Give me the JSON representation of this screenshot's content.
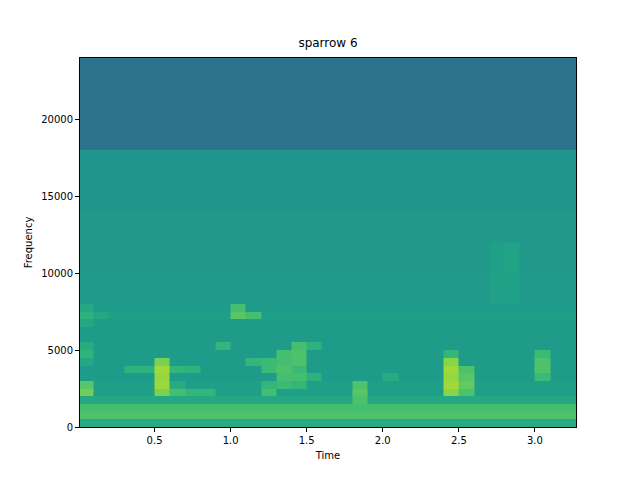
{
  "chart_data": {
    "type": "heatmap",
    "title": "sparrow 6",
    "x_label": "Time",
    "y_label": "Frequency",
    "xlim": [
      0.01,
      3.27
    ],
    "xticks": [
      {
        "value": 0.5,
        "label": "0.5"
      },
      {
        "value": 1,
        "label": "1.0"
      },
      {
        "value": 1.5,
        "label": "1.5"
      },
      {
        "value": 2,
        "label": "2.0"
      },
      {
        "value": 2.5,
        "label": "2.5"
      },
      {
        "value": 3,
        "label": "3.0"
      }
    ],
    "ylim": [
      0,
      24000
    ],
    "yticks": [
      0,
      5000,
      10000,
      15000,
      20000
    ],
    "color": "Viridis",
    "color_range": [
      0,
      1
    ],
    "x": [
      0,
      0.1,
      0.2,
      0.3,
      0.4,
      0.5,
      0.6,
      0.7,
      0.8,
      0.9,
      1.0,
      1.1,
      1.2,
      1.3,
      1.4,
      1.5,
      1.6,
      1.7,
      1.8,
      1.9,
      2.0,
      2.1,
      2.2,
      2.3,
      2.4,
      2.5,
      2.6,
      2.7,
      2.8,
      2.9,
      3.0,
      3.1,
      3.2,
      3.3
    ],
    "y": [
      0,
      500,
      1000,
      1500,
      2000,
      2500,
      3000,
      3500,
      4000,
      4500,
      5000,
      5500,
      6000,
      6500,
      7000,
      7500,
      8000,
      10000,
      12000,
      14000,
      16000,
      18000,
      20000,
      22000,
      24000
    ],
    "z": [
      [
        0.62,
        0.62,
        0.62,
        0.62,
        0.62,
        0.62,
        0.62,
        0.62,
        0.62,
        0.62,
        0.62,
        0.62,
        0.62,
        0.62,
        0.62,
        0.62,
        0.62,
        0.62,
        0.62,
        0.62,
        0.62,
        0.62,
        0.62,
        0.62,
        0.62,
        0.62,
        0.62,
        0.62,
        0.62,
        0.62,
        0.62,
        0.62,
        0.62
      ],
      [
        0.72,
        0.72,
        0.72,
        0.72,
        0.72,
        0.72,
        0.72,
        0.72,
        0.72,
        0.72,
        0.72,
        0.72,
        0.72,
        0.72,
        0.72,
        0.72,
        0.72,
        0.72,
        0.72,
        0.72,
        0.72,
        0.72,
        0.72,
        0.72,
        0.72,
        0.72,
        0.72,
        0.72,
        0.72,
        0.72,
        0.72,
        0.72,
        0.72
      ],
      [
        0.7,
        0.7,
        0.7,
        0.7,
        0.7,
        0.7,
        0.7,
        0.7,
        0.7,
        0.7,
        0.7,
        0.7,
        0.7,
        0.7,
        0.7,
        0.7,
        0.7,
        0.7,
        0.7,
        0.7,
        0.7,
        0.7,
        0.7,
        0.7,
        0.7,
        0.7,
        0.7,
        0.7,
        0.7,
        0.7,
        0.7,
        0.7,
        0.7
      ],
      [
        0.6,
        0.6,
        0.6,
        0.6,
        0.6,
        0.6,
        0.6,
        0.6,
        0.6,
        0.6,
        0.6,
        0.6,
        0.6,
        0.6,
        0.6,
        0.6,
        0.6,
        0.6,
        0.72,
        0.6,
        0.6,
        0.6,
        0.6,
        0.6,
        0.6,
        0.6,
        0.6,
        0.6,
        0.6,
        0.6,
        0.6,
        0.6,
        0.6
      ],
      [
        0.78,
        0.56,
        0.56,
        0.56,
        0.56,
        0.8,
        0.7,
        0.66,
        0.66,
        0.56,
        0.56,
        0.56,
        0.7,
        0.56,
        0.56,
        0.56,
        0.56,
        0.56,
        0.74,
        0.56,
        0.56,
        0.56,
        0.56,
        0.56,
        0.82,
        0.72,
        0.56,
        0.56,
        0.56,
        0.56,
        0.56,
        0.56,
        0.56
      ],
      [
        0.74,
        0.56,
        0.56,
        0.56,
        0.56,
        0.85,
        0.62,
        0.56,
        0.56,
        0.56,
        0.56,
        0.56,
        0.66,
        0.68,
        0.66,
        0.56,
        0.56,
        0.56,
        0.72,
        0.56,
        0.56,
        0.56,
        0.56,
        0.56,
        0.86,
        0.76,
        0.56,
        0.56,
        0.56,
        0.56,
        0.56,
        0.56,
        0.56
      ],
      [
        0.55,
        0.55,
        0.55,
        0.55,
        0.55,
        0.84,
        0.55,
        0.55,
        0.55,
        0.55,
        0.55,
        0.55,
        0.55,
        0.7,
        0.7,
        0.64,
        0.55,
        0.55,
        0.55,
        0.55,
        0.62,
        0.55,
        0.55,
        0.55,
        0.84,
        0.74,
        0.55,
        0.55,
        0.55,
        0.55,
        0.68,
        0.55,
        0.55
      ],
      [
        0.55,
        0.55,
        0.55,
        0.64,
        0.64,
        0.86,
        0.66,
        0.64,
        0.55,
        0.55,
        0.55,
        0.55,
        0.68,
        0.72,
        0.68,
        0.55,
        0.55,
        0.55,
        0.55,
        0.55,
        0.55,
        0.55,
        0.55,
        0.55,
        0.86,
        0.72,
        0.55,
        0.55,
        0.55,
        0.55,
        0.72,
        0.55,
        0.55
      ],
      [
        0.6,
        0.55,
        0.55,
        0.55,
        0.55,
        0.8,
        0.55,
        0.55,
        0.55,
        0.55,
        0.55,
        0.66,
        0.68,
        0.7,
        0.72,
        0.55,
        0.55,
        0.55,
        0.55,
        0.55,
        0.55,
        0.55,
        0.55,
        0.55,
        0.82,
        0.55,
        0.55,
        0.55,
        0.55,
        0.55,
        0.72,
        0.55,
        0.55
      ],
      [
        0.65,
        0.55,
        0.55,
        0.55,
        0.55,
        0.55,
        0.55,
        0.55,
        0.55,
        0.55,
        0.55,
        0.55,
        0.55,
        0.7,
        0.72,
        0.55,
        0.55,
        0.55,
        0.55,
        0.55,
        0.55,
        0.55,
        0.55,
        0.55,
        0.66,
        0.55,
        0.55,
        0.55,
        0.55,
        0.55,
        0.68,
        0.55,
        0.55
      ],
      [
        0.62,
        0.55,
        0.55,
        0.55,
        0.55,
        0.55,
        0.55,
        0.55,
        0.55,
        0.66,
        0.55,
        0.55,
        0.55,
        0.55,
        0.7,
        0.64,
        0.55,
        0.55,
        0.55,
        0.55,
        0.55,
        0.55,
        0.55,
        0.55,
        0.55,
        0.55,
        0.55,
        0.55,
        0.55,
        0.55,
        0.55,
        0.55,
        0.55
      ],
      [
        0.55,
        0.55,
        0.55,
        0.55,
        0.55,
        0.55,
        0.55,
        0.55,
        0.55,
        0.55,
        0.55,
        0.55,
        0.55,
        0.55,
        0.55,
        0.55,
        0.55,
        0.55,
        0.55,
        0.55,
        0.55,
        0.55,
        0.55,
        0.55,
        0.55,
        0.55,
        0.55,
        0.55,
        0.55,
        0.55,
        0.55,
        0.55,
        0.55
      ],
      [
        0.55,
        0.55,
        0.55,
        0.55,
        0.55,
        0.55,
        0.55,
        0.55,
        0.55,
        0.55,
        0.55,
        0.55,
        0.55,
        0.55,
        0.55,
        0.55,
        0.55,
        0.55,
        0.55,
        0.55,
        0.55,
        0.55,
        0.55,
        0.55,
        0.55,
        0.55,
        0.55,
        0.55,
        0.55,
        0.55,
        0.55,
        0.55,
        0.55
      ],
      [
        0.6,
        0.55,
        0.55,
        0.55,
        0.55,
        0.55,
        0.55,
        0.55,
        0.55,
        0.55,
        0.55,
        0.55,
        0.55,
        0.55,
        0.55,
        0.55,
        0.55,
        0.55,
        0.55,
        0.55,
        0.55,
        0.55,
        0.55,
        0.55,
        0.55,
        0.55,
        0.55,
        0.55,
        0.55,
        0.55,
        0.55,
        0.55,
        0.55
      ],
      [
        0.64,
        0.6,
        0.56,
        0.56,
        0.56,
        0.56,
        0.56,
        0.56,
        0.56,
        0.56,
        0.74,
        0.7,
        0.56,
        0.56,
        0.56,
        0.56,
        0.56,
        0.56,
        0.56,
        0.56,
        0.56,
        0.56,
        0.56,
        0.56,
        0.56,
        0.56,
        0.56,
        0.56,
        0.56,
        0.56,
        0.56,
        0.56,
        0.56
      ],
      [
        0.6,
        0.55,
        0.55,
        0.55,
        0.55,
        0.55,
        0.55,
        0.55,
        0.55,
        0.55,
        0.7,
        0.55,
        0.55,
        0.55,
        0.55,
        0.55,
        0.55,
        0.55,
        0.55,
        0.55,
        0.55,
        0.55,
        0.55,
        0.55,
        0.55,
        0.55,
        0.55,
        0.55,
        0.55,
        0.55,
        0.55,
        0.55,
        0.55
      ],
      [
        0.54,
        0.54,
        0.54,
        0.54,
        0.54,
        0.54,
        0.54,
        0.54,
        0.54,
        0.54,
        0.54,
        0.54,
        0.54,
        0.54,
        0.54,
        0.54,
        0.54,
        0.54,
        0.54,
        0.54,
        0.54,
        0.54,
        0.54,
        0.54,
        0.54,
        0.54,
        0.54,
        0.57,
        0.57,
        0.54,
        0.54,
        0.54,
        0.54
      ],
      [
        0.53,
        0.53,
        0.53,
        0.53,
        0.53,
        0.53,
        0.53,
        0.53,
        0.53,
        0.53,
        0.53,
        0.53,
        0.53,
        0.53,
        0.53,
        0.53,
        0.53,
        0.53,
        0.53,
        0.53,
        0.53,
        0.53,
        0.53,
        0.53,
        0.53,
        0.53,
        0.53,
        0.57,
        0.58,
        0.53,
        0.53,
        0.53,
        0.53
      ],
      [
        0.53,
        0.53,
        0.53,
        0.53,
        0.53,
        0.53,
        0.53,
        0.53,
        0.53,
        0.53,
        0.53,
        0.53,
        0.53,
        0.53,
        0.53,
        0.53,
        0.53,
        0.53,
        0.53,
        0.53,
        0.53,
        0.53,
        0.53,
        0.53,
        0.53,
        0.53,
        0.53,
        0.53,
        0.53,
        0.53,
        0.53,
        0.53,
        0.53
      ],
      [
        0.52,
        0.52,
        0.52,
        0.52,
        0.52,
        0.52,
        0.52,
        0.52,
        0.52,
        0.52,
        0.52,
        0.52,
        0.52,
        0.52,
        0.52,
        0.52,
        0.52,
        0.52,
        0.52,
        0.52,
        0.52,
        0.52,
        0.52,
        0.52,
        0.52,
        0.52,
        0.52,
        0.52,
        0.52,
        0.52,
        0.52,
        0.52,
        0.52
      ],
      [
        0.52,
        0.52,
        0.52,
        0.52,
        0.52,
        0.52,
        0.52,
        0.52,
        0.52,
        0.52,
        0.52,
        0.52,
        0.52,
        0.52,
        0.52,
        0.52,
        0.52,
        0.52,
        0.52,
        0.52,
        0.52,
        0.52,
        0.52,
        0.52,
        0.52,
        0.52,
        0.52,
        0.52,
        0.52,
        0.52,
        0.52,
        0.52,
        0.52
      ],
      [
        0.38,
        0.38,
        0.38,
        0.38,
        0.38,
        0.38,
        0.38,
        0.38,
        0.38,
        0.38,
        0.38,
        0.38,
        0.38,
        0.38,
        0.38,
        0.38,
        0.38,
        0.38,
        0.38,
        0.38,
        0.38,
        0.38,
        0.38,
        0.38,
        0.38,
        0.38,
        0.38,
        0.38,
        0.38,
        0.38,
        0.38,
        0.38,
        0.38
      ],
      [
        0.38,
        0.38,
        0.38,
        0.38,
        0.38,
        0.38,
        0.38,
        0.38,
        0.38,
        0.38,
        0.38,
        0.38,
        0.38,
        0.38,
        0.38,
        0.38,
        0.38,
        0.38,
        0.38,
        0.38,
        0.38,
        0.38,
        0.38,
        0.38,
        0.38,
        0.38,
        0.38,
        0.38,
        0.38,
        0.38,
        0.38,
        0.38,
        0.38
      ],
      [
        0.38,
        0.38,
        0.38,
        0.38,
        0.38,
        0.38,
        0.38,
        0.38,
        0.38,
        0.38,
        0.38,
        0.38,
        0.38,
        0.38,
        0.38,
        0.38,
        0.38,
        0.38,
        0.38,
        0.38,
        0.38,
        0.38,
        0.38,
        0.38,
        0.38,
        0.38,
        0.38,
        0.38,
        0.38,
        0.38,
        0.38,
        0.38,
        0.38
      ]
    ]
  }
}
